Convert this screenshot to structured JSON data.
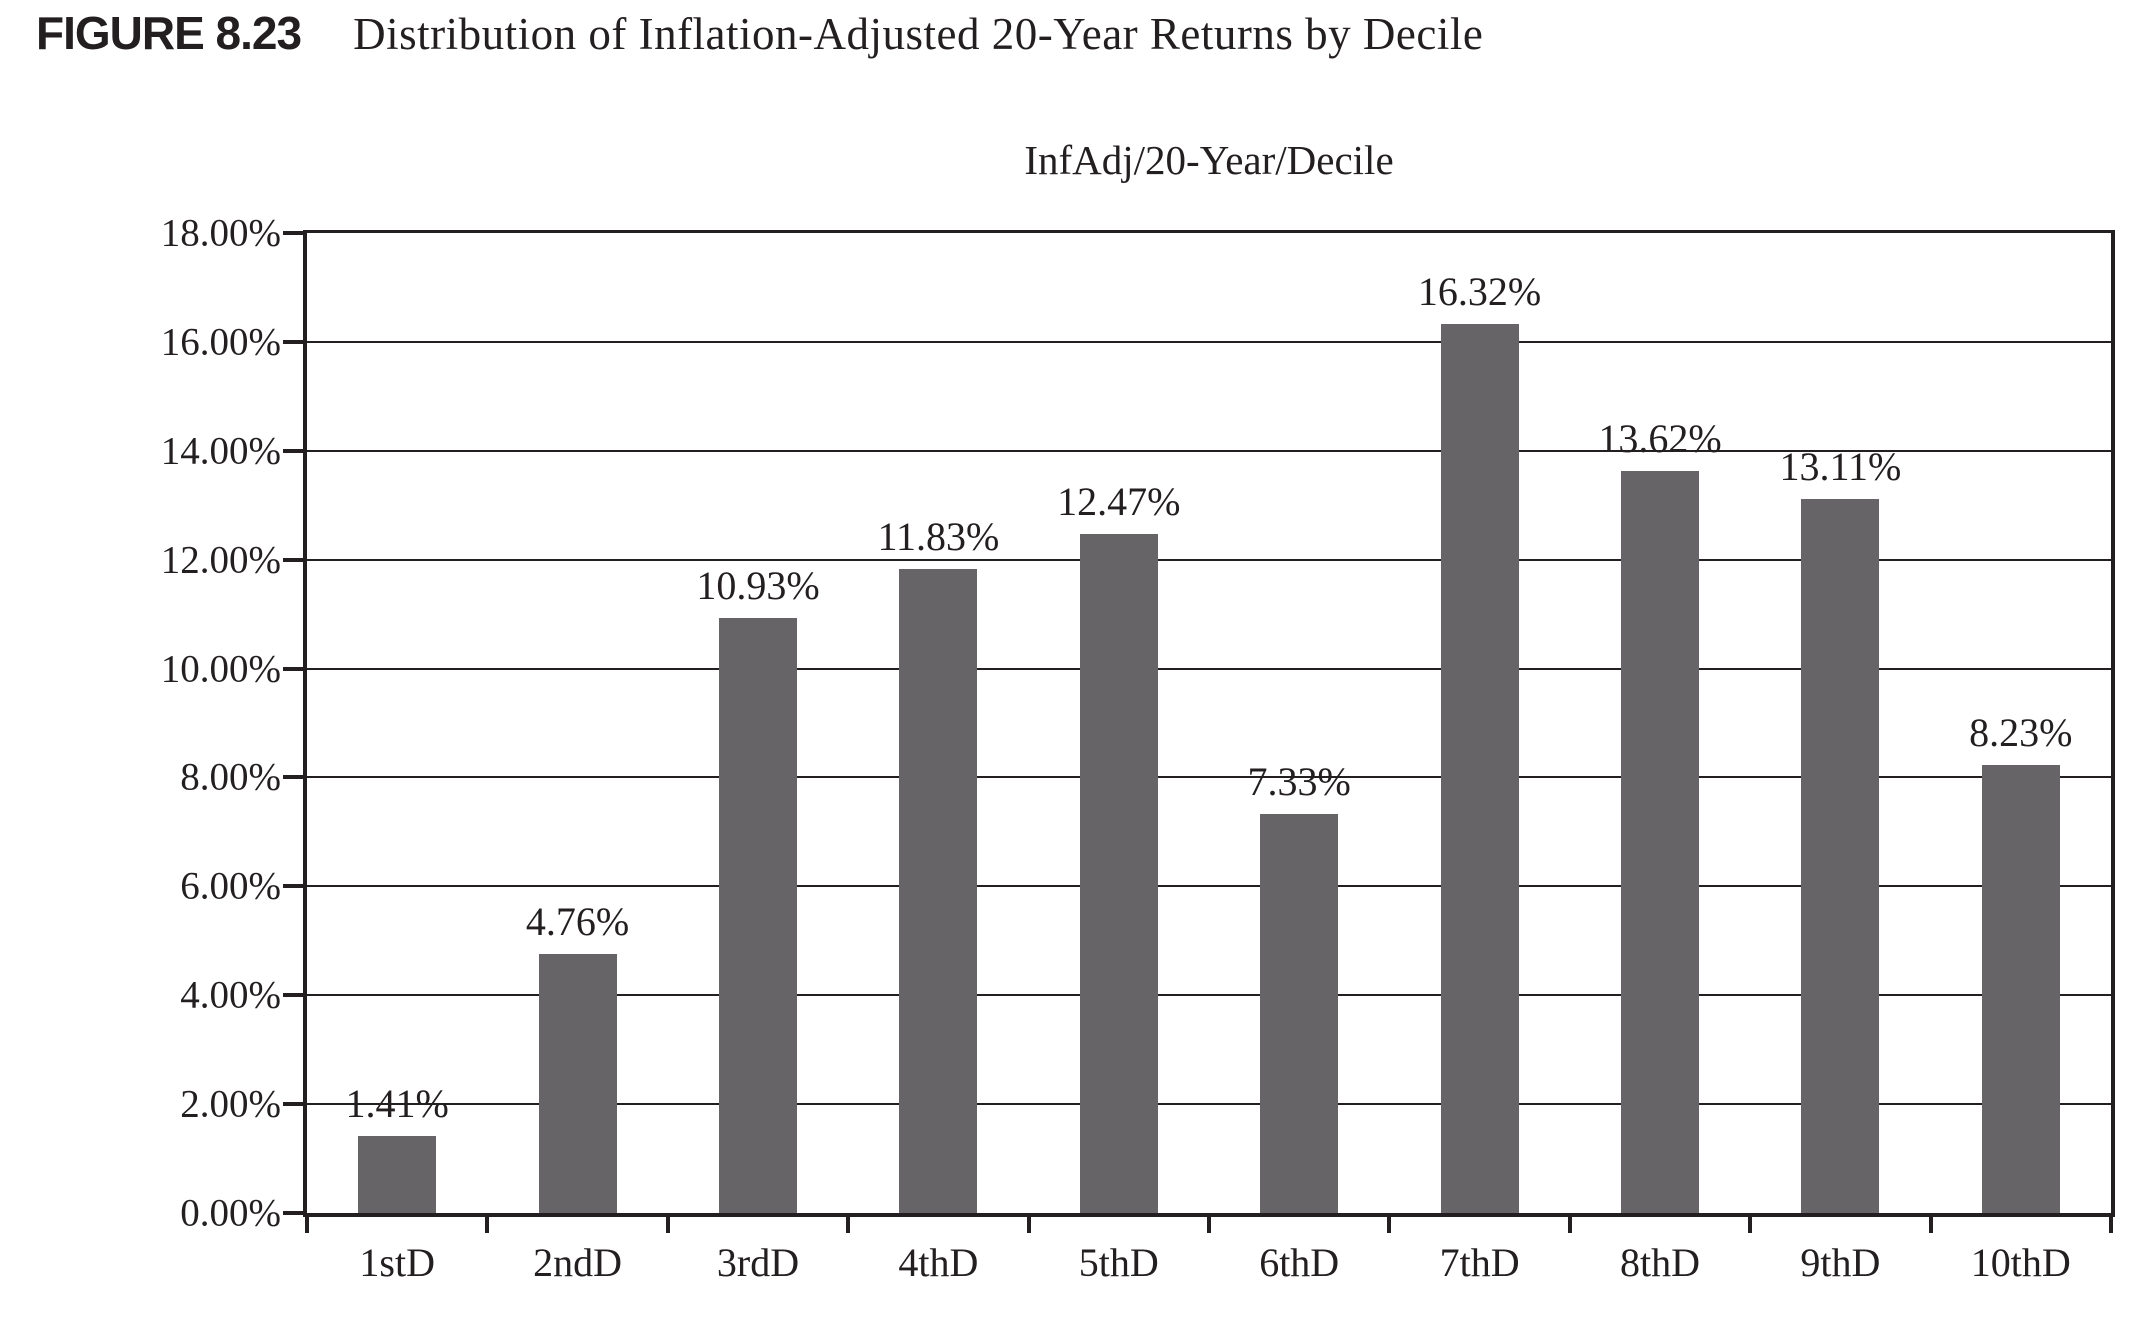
{
  "figure": {
    "label": "FIGURE 8.23",
    "title": "Distribution of Inflation-Adjusted 20-Year Returns by Decile"
  },
  "chart_data": {
    "type": "bar",
    "title": "InfAdj/20-Year/Decile",
    "categories": [
      "1stD",
      "2ndD",
      "3rdD",
      "4thD",
      "5thD",
      "6thD",
      "7thD",
      "8thD",
      "9thD",
      "10thD"
    ],
    "values": [
      1.41,
      4.76,
      10.93,
      11.83,
      12.47,
      7.33,
      16.32,
      13.62,
      13.11,
      8.23
    ],
    "value_labels": [
      "1.41%",
      "4.76%",
      "10.93%",
      "11.83%",
      "12.47%",
      "7.33%",
      "16.32%",
      "13.62%",
      "13.11%",
      "8.23%"
    ],
    "xlabel": "",
    "ylabel": "",
    "ylim": [
      0,
      18
    ],
    "y_tick_step": 2,
    "y_tick_labels": [
      "0.00%",
      "2.00%",
      "4.00%",
      "6.00%",
      "8.00%",
      "10.00%",
      "12.00%",
      "14.00%",
      "16.00%",
      "18.00%"
    ],
    "grid": true,
    "legend_position": "none",
    "bar_color": "#666466",
    "axis_color": "#231f20",
    "text_color": "#231f20"
  }
}
